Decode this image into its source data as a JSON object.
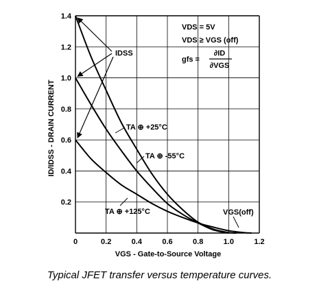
{
  "caption": "Typical JFET transfer versus temperature curves.",
  "chart_data": {
    "type": "line",
    "xlabel": "VGS - Gate-to-Source Voltage",
    "ylabel": "ID/IDSS - DRAIN CURRENT",
    "xlim": [
      0,
      1.2
    ],
    "ylim": [
      0,
      1.4
    ],
    "x_ticks": [
      "0",
      "0.2",
      "0.4",
      "0.6",
      "0.8",
      "1.0",
      "1.2"
    ],
    "y_ticks": [
      "0.2",
      "0.4",
      "0.6",
      "0.8",
      "1.0",
      "1.2",
      "1.4"
    ],
    "grid": true,
    "series": [
      {
        "name": "TA = -55°C",
        "x": [
          0,
          0.1,
          0.2,
          0.3,
          0.4,
          0.5,
          0.6,
          0.7,
          0.8,
          0.9,
          1.0,
          1.05
        ],
        "y": [
          1.4,
          1.14,
          0.92,
          0.71,
          0.54,
          0.38,
          0.25,
          0.15,
          0.07,
          0.025,
          0.003,
          0
        ]
      },
      {
        "name": "TA = +25°C",
        "x": [
          0,
          0.1,
          0.2,
          0.3,
          0.4,
          0.5,
          0.6,
          0.7,
          0.8,
          0.9,
          1.0
        ],
        "y": [
          1.0,
          0.83,
          0.67,
          0.53,
          0.4,
          0.29,
          0.19,
          0.12,
          0.065,
          0.02,
          0
        ]
      },
      {
        "name": "TA = +125°C",
        "x": [
          0,
          0.1,
          0.2,
          0.3,
          0.4,
          0.5,
          0.6,
          0.7,
          0.8,
          0.9,
          1.0,
          1.1,
          1.15
        ],
        "y": [
          0.6,
          0.48,
          0.39,
          0.31,
          0.25,
          0.19,
          0.14,
          0.1,
          0.065,
          0.038,
          0.015,
          0.003,
          0
        ]
      }
    ],
    "annotations": {
      "idss": "IDSS",
      "vgsoff": "VGS(off)",
      "ta_plus25": "TA ⊕ +25°C",
      "ta_minus55": "TA ⊕ -55°C",
      "ta_plus125": "TA ⊕ +125°C",
      "cond_vds1": "VDS = 5V",
      "cond_vds2": "VDS ≥ VGS (off)",
      "gfs": "gfs =",
      "gfs_num": "∂ID",
      "gfs_den": "∂VGS"
    }
  }
}
